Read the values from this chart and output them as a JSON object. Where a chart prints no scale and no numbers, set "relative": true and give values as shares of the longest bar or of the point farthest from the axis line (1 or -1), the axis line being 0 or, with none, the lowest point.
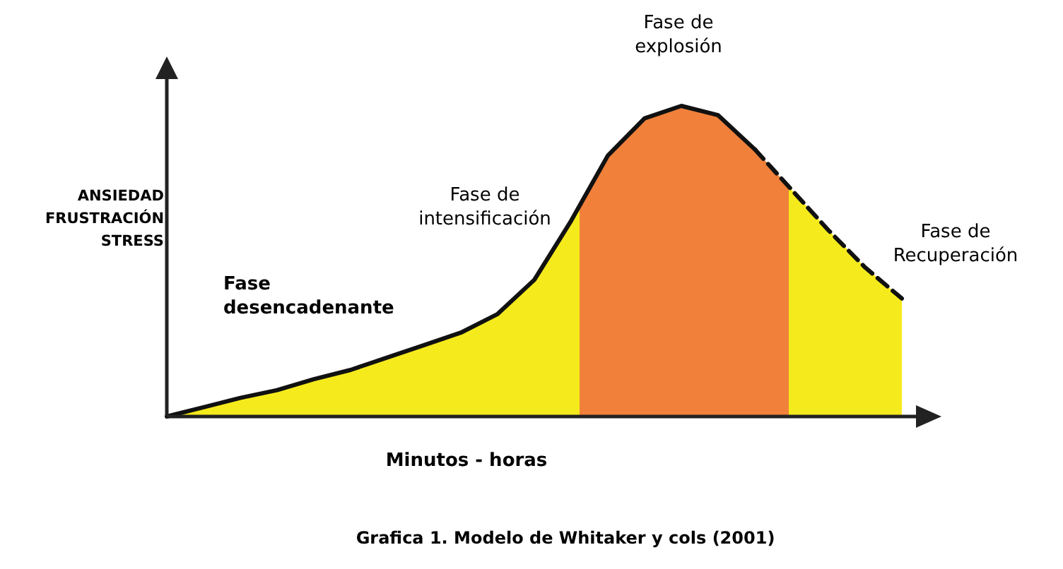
{
  "chart_data": {
    "type": "area",
    "relative": true,
    "categories": [
      null,
      null,
      null,
      null,
      null,
      null,
      null,
      null,
      null,
      null,
      null,
      null,
      null,
      null,
      null,
      null,
      null,
      null,
      null,
      null,
      null
    ],
    "series": [
      {
        "color": "#f5ea1c",
        "line_style": "solid",
        "values": [
          0,
          0.03,
          0.06,
          0.085,
          0.12,
          0.15,
          0.19,
          0.23,
          0.27,
          0.33,
          0.44,
          0.63,
          0.84,
          0.96,
          1.0,
          0.97,
          0.86,
          null,
          null,
          null,
          null
        ]
      },
      {
        "color": "#f5ea1c",
        "line_style": "dashed",
        "values": [
          null,
          null,
          null,
          null,
          null,
          null,
          null,
          null,
          null,
          null,
          null,
          null,
          null,
          null,
          null,
          null,
          0.86,
          0.73,
          0.6,
          0.48,
          0.38
        ]
      }
    ],
    "xlabel": "Minutos - horas",
    "ylabel": "ANSIEDAD\nFRUSTRACIÓN\nSTRESS",
    "annotations": [
      "Fase\ndesencadenante",
      "Fase de\nintensificación",
      "Fase de\nexplosión",
      "Fase de\nRecuperación",
      "Grafica 1. Modelo de Whitaker y cols (2001)"
    ]
  }
}
